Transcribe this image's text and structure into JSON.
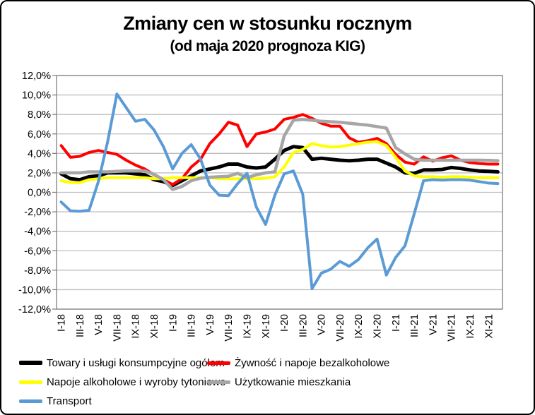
{
  "title": {
    "line1": "Zmiany cen w stosunku rocznym",
    "line2": "(od maja 2020 prognoza KIG)"
  },
  "colors": {
    "background": "#FFFFFF",
    "frame_border": "#000000",
    "grid": "#BFBFBF",
    "axis": "#808080",
    "text": "#000000"
  },
  "chart_data": {
    "type": "line",
    "title": "Zmiany cen w stosunku rocznym",
    "subtitle": "(od maja 2020 prognoza KIG)",
    "xlabel": "",
    "ylabel": "",
    "ylim": [
      -12,
      12
    ],
    "ytick_step": 2,
    "grid": true,
    "legend_position": "bottom-left",
    "y_tick_labels": [
      "12,0%",
      "10,0%",
      "8,0%",
      "6,0%",
      "4,0%",
      "2,0%",
      "0,0%",
      "-2,0%",
      "-4,0%",
      "-6,0%",
      "-8,0%",
      "-10,0%",
      "-12,0%"
    ],
    "x_tick_labels_shown": [
      "I-18",
      "III-18",
      "V-18",
      "VII-18",
      "IX-18",
      "XI-18",
      "I-19",
      "III-19",
      "V-19",
      "VII-19",
      "IX-19",
      "XI-19",
      "I-20",
      "III-20",
      "V-20",
      "VII-20",
      "IX-20",
      "XI-20",
      "I-21",
      "III-21",
      "V-21",
      "VII-21",
      "IX-21",
      "XI-21"
    ],
    "categories": [
      "I-18",
      "II-18",
      "III-18",
      "IV-18",
      "V-18",
      "VI-18",
      "VII-18",
      "VIII-18",
      "IX-18",
      "X-18",
      "XI-18",
      "XII-18",
      "I-19",
      "II-19",
      "III-19",
      "IV-19",
      "V-19",
      "VI-19",
      "VII-19",
      "VIII-19",
      "IX-19",
      "X-19",
      "XI-19",
      "XII-19",
      "I-20",
      "II-20",
      "III-20",
      "IV-20",
      "V-20",
      "VI-20",
      "VII-20",
      "VIII-20",
      "IX-20",
      "X-20",
      "XI-20",
      "XII-20",
      "I-21",
      "II-21",
      "III-21",
      "IV-21",
      "V-21",
      "VI-21",
      "VII-21",
      "VIII-21",
      "IX-21",
      "X-21",
      "XI-21",
      "XII-21"
    ],
    "series": [
      {
        "name": "Towary i usługi konsumpcyjne ogółem",
        "color": "#000000",
        "stroke_width": 5,
        "values": [
          1.9,
          1.4,
          1.3,
          1.6,
          1.7,
          2.0,
          2.0,
          2.0,
          1.9,
          1.8,
          1.3,
          1.1,
          0.7,
          1.2,
          1.7,
          2.2,
          2.4,
          2.6,
          2.9,
          2.9,
          2.6,
          2.5,
          2.6,
          3.4,
          4.3,
          4.7,
          4.6,
          3.4,
          3.5,
          3.4,
          3.3,
          3.25,
          3.3,
          3.4,
          3.4,
          3.0,
          2.6,
          2.0,
          1.95,
          2.3,
          2.3,
          2.35,
          2.55,
          2.45,
          2.3,
          2.2,
          2.15,
          2.1
        ]
      },
      {
        "name": "Żywność i napoje bezalkoholowe",
        "color": "#FF0000",
        "stroke_width": 4,
        "values": [
          4.8,
          3.6,
          3.7,
          4.1,
          4.3,
          4.1,
          3.9,
          3.3,
          2.8,
          2.4,
          1.8,
          1.3,
          0.8,
          1.4,
          2.6,
          3.4,
          5.0,
          6.0,
          7.2,
          6.9,
          4.7,
          6.0,
          6.2,
          6.5,
          7.5,
          7.7,
          8.0,
          7.6,
          7.1,
          6.8,
          6.8,
          5.6,
          5.15,
          5.3,
          5.55,
          5.0,
          3.9,
          3.1,
          2.9,
          3.65,
          3.2,
          3.55,
          3.75,
          3.3,
          3.05,
          2.95,
          2.9,
          2.9
        ]
      },
      {
        "name": "Napoje alkoholowe i wyroby tytoniowe",
        "color": "#FFFF00",
        "stroke_width": 4,
        "values": [
          1.2,
          1.0,
          1.0,
          1.3,
          1.4,
          1.5,
          1.5,
          1.5,
          1.5,
          1.5,
          1.4,
          1.4,
          1.5,
          1.5,
          1.5,
          1.5,
          1.5,
          1.4,
          1.4,
          1.4,
          1.4,
          1.4,
          1.45,
          1.6,
          2.6,
          4.1,
          4.4,
          5.0,
          4.8,
          4.65,
          4.7,
          4.85,
          5.0,
          5.15,
          5.2,
          4.8,
          3.6,
          2.2,
          1.7,
          1.6,
          1.6,
          1.55,
          1.6,
          1.6,
          1.55,
          1.5,
          1.5,
          1.5
        ]
      },
      {
        "name": "Użytkowanie mieszkania",
        "color": "#A6A6A6",
        "stroke_width": 4.5,
        "values": [
          2.0,
          2.0,
          2.0,
          2.1,
          2.1,
          2.1,
          2.15,
          2.2,
          2.2,
          2.2,
          1.85,
          1.3,
          0.3,
          0.6,
          1.2,
          1.45,
          1.55,
          1.6,
          1.65,
          1.95,
          1.5,
          1.8,
          2.0,
          2.1,
          5.8,
          7.4,
          7.5,
          7.4,
          7.3,
          7.25,
          7.2,
          7.1,
          7.0,
          6.9,
          6.75,
          6.6,
          4.6,
          3.95,
          3.4,
          3.3,
          3.3,
          3.3,
          3.3,
          3.3,
          3.3,
          3.3,
          3.28,
          3.25
        ]
      },
      {
        "name": "Transport",
        "color": "#5B9BD5",
        "stroke_width": 4,
        "values": [
          -1.0,
          -1.9,
          -1.95,
          -1.85,
          1.1,
          5.2,
          10.1,
          8.7,
          7.3,
          7.5,
          6.4,
          4.7,
          2.4,
          4.0,
          4.9,
          3.4,
          0.75,
          -0.3,
          -0.35,
          0.9,
          1.95,
          -1.5,
          -3.3,
          -0.3,
          1.9,
          2.2,
          -0.2,
          -9.9,
          -8.3,
          -7.9,
          -7.1,
          -7.6,
          -6.9,
          -5.7,
          -4.8,
          -8.5,
          -6.7,
          -5.5,
          -2.2,
          1.2,
          1.3,
          1.25,
          1.3,
          1.3,
          1.25,
          1.1,
          0.95,
          0.9
        ]
      }
    ]
  }
}
